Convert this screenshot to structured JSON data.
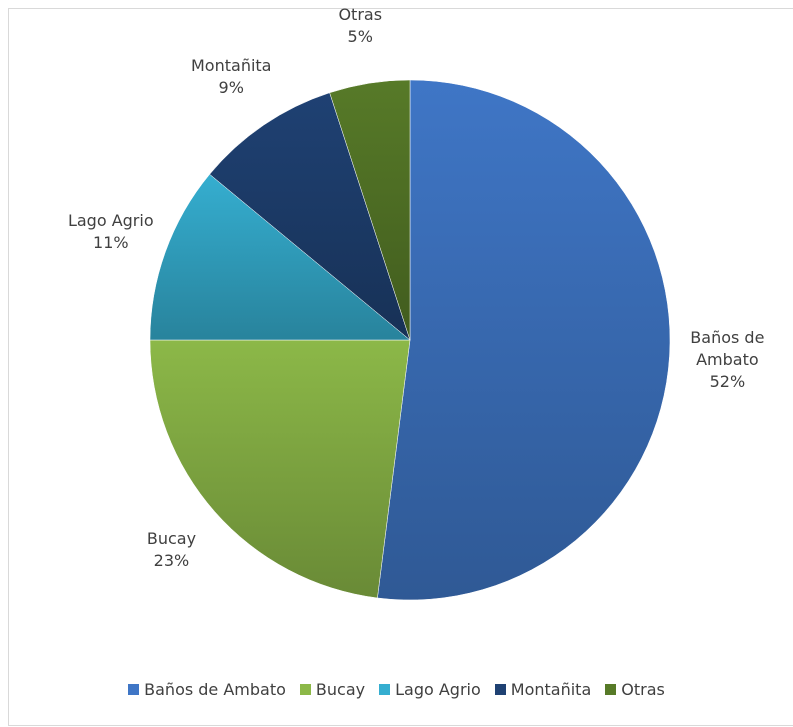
{
  "chart_data": {
    "type": "pie",
    "categories": [
      "Baños de Ambato",
      "Bucay",
      "Lago Agrio",
      "Montañita",
      "Otras"
    ],
    "values": [
      52,
      23,
      11,
      9,
      5
    ],
    "value_labels": [
      "52%",
      "23%",
      "11%",
      "9%",
      "5%"
    ],
    "colors": [
      "#3f76c6",
      "#8cb848",
      "#35aed0",
      "#1f4173",
      "#577a28"
    ],
    "legend": "bottom"
  }
}
